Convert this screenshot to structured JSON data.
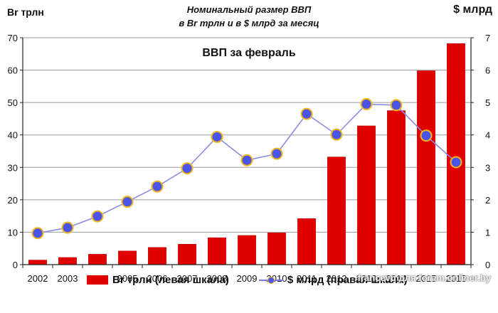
{
  "chart_data": {
    "type": "bar+line",
    "title": "Номинальный  размер ВВП",
    "title_line2": "в Br трлн и в $ млрд за месяц",
    "subtitle": "ВВП за февраль",
    "left_axis_label": "Br трлн",
    "right_axis_label": "$ млрд",
    "categories": [
      "2002",
      "2003",
      "2004",
      "2005",
      "2006",
      "2007",
      "2008",
      "2009",
      "2010",
      "2011",
      "2012",
      "2013",
      "2014",
      "2015",
      "2016"
    ],
    "y_left_ticks": [
      0,
      10,
      20,
      30,
      40,
      50,
      60,
      70
    ],
    "y_right_ticks": [
      0,
      1,
      2,
      3,
      4,
      5,
      6,
      7
    ],
    "ylim_left": [
      0,
      70
    ],
    "ylim_right": [
      0,
      7
    ],
    "grid": true,
    "legend_position": "bottom",
    "series": [
      {
        "name": "Br трлн (левая шкала)",
        "type": "bar",
        "axis": "left",
        "color": "#e00000",
        "values": [
          1.4,
          2.2,
          3.2,
          4.2,
          5.3,
          6.3,
          8.3,
          9.0,
          9.8,
          14.2,
          33.2,
          42.8,
          47.5,
          59.8,
          68.2
        ]
      },
      {
        "name": "$ млрд (правая шкала)",
        "type": "line",
        "axis": "right",
        "color": "#8c8ce0",
        "marker_color": "#4a55e8",
        "marker_edge": "#f2b51c",
        "values": [
          0.97,
          1.14,
          1.49,
          1.94,
          2.41,
          2.97,
          3.94,
          3.22,
          3.42,
          4.65,
          4.01,
          4.95,
          4.92,
          3.98,
          3.16
        ]
      }
    ]
  },
  "watermark": "francevu для forum.onliner.by",
  "logo_text": "bdg.by"
}
